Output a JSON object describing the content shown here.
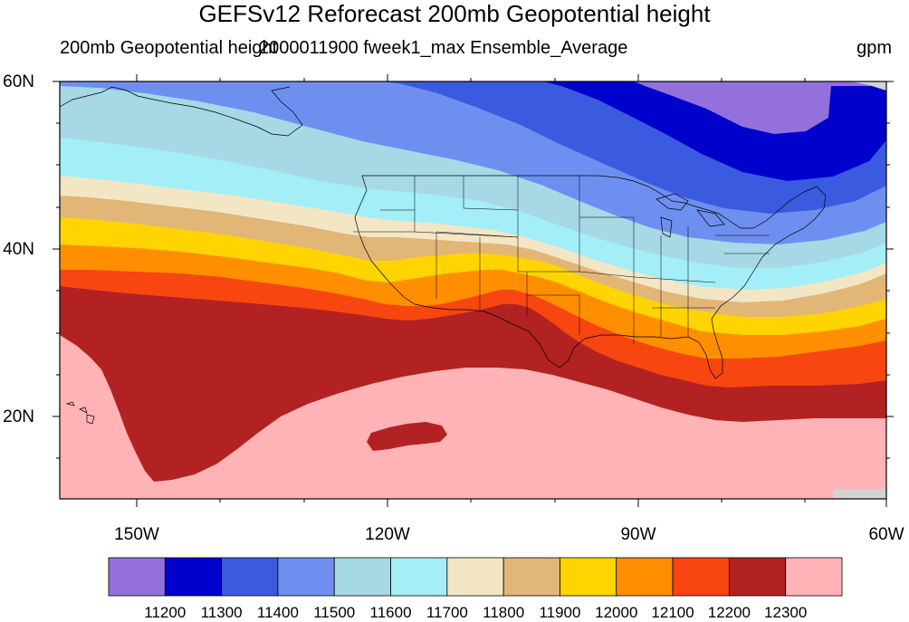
{
  "title": "GEFSv12 Reforecast 200mb Geopotential height",
  "subtitle_left": "200mb Geopotential height",
  "subtitle_center": "2000011900 fweek1_max Ensemble_Average",
  "units": "gpm",
  "lat_labels": [
    "60N",
    "40N",
    "20N"
  ],
  "lon_labels": [
    "150W",
    "120W",
    "90W",
    "60W"
  ],
  "colorbar": {
    "levels": [
      "11200",
      "11300",
      "11400",
      "11500",
      "11600",
      "11700",
      "11800",
      "11900",
      "12000",
      "12100",
      "12200",
      "12300"
    ],
    "colors": [
      "#9370db",
      "#0000cd",
      "#3a5be0",
      "#6f8ff0",
      "#a6d8e6",
      "#a3eef7",
      "#f3e6c4",
      "#e2b677",
      "#ffd400",
      "#ff8f00",
      "#f74610",
      "#b22222",
      "#ffb3b6"
    ]
  }
}
